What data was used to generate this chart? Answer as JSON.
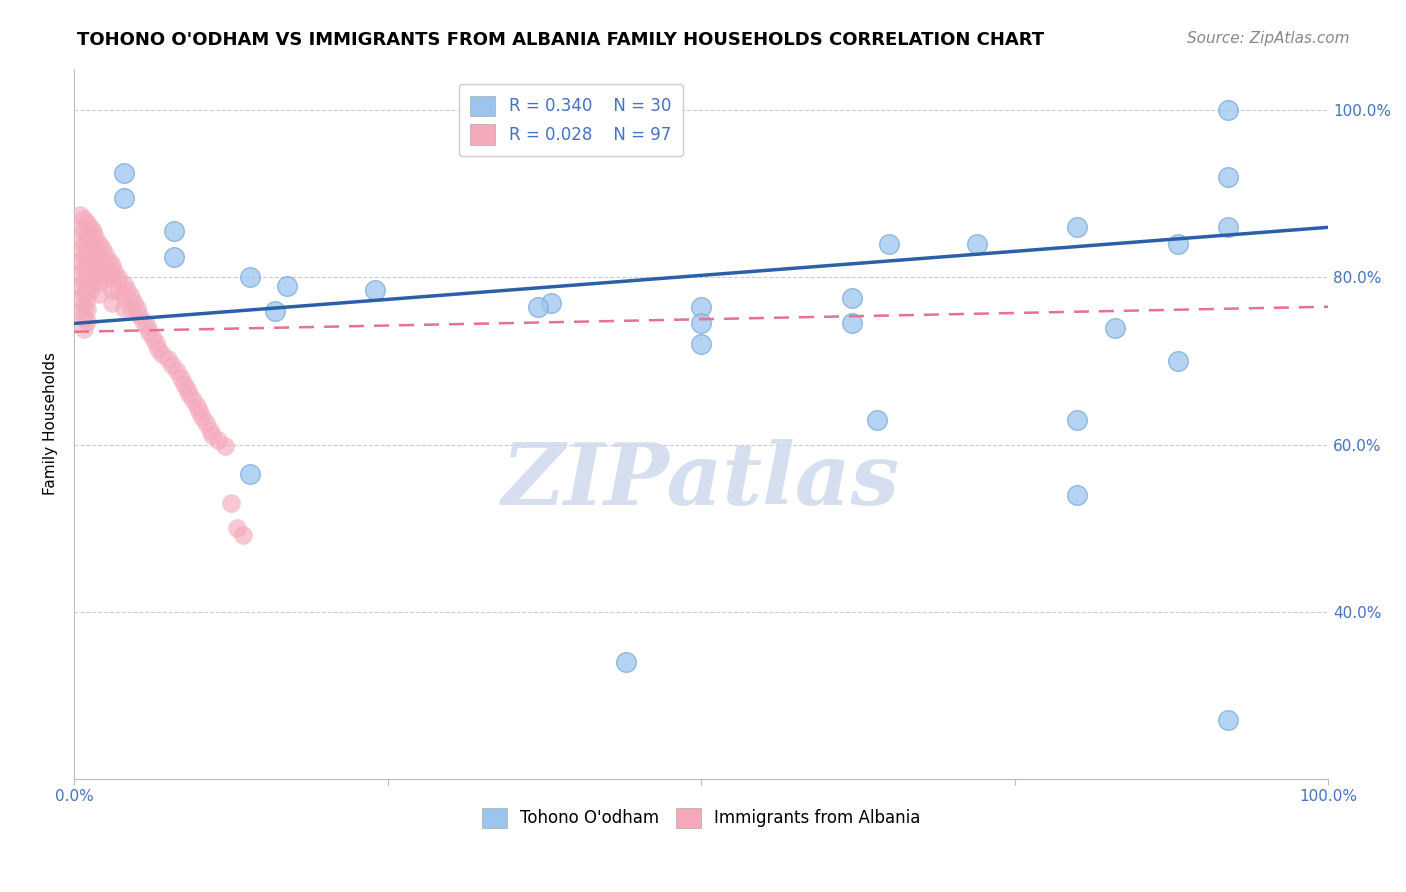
{
  "title": "TOHONO O'ODHAM VS IMMIGRANTS FROM ALBANIA FAMILY HOUSEHOLDS CORRELATION CHART",
  "source": "Source: ZipAtlas.com",
  "ylabel": "Family Households",
  "legend_blue_r": "R = 0.340",
  "legend_blue_n": "N = 30",
  "legend_pink_r": "R = 0.028",
  "legend_pink_n": "N = 97",
  "legend_blue_label": "Tohono O'odham",
  "legend_pink_label": "Immigrants from Albania",
  "blue_scatter_x": [
    0.04,
    0.04,
    0.08,
    0.08,
    0.14,
    0.17,
    0.24,
    0.38,
    0.5,
    0.62,
    0.62,
    0.65,
    0.72,
    0.8,
    0.83,
    0.88,
    0.92,
    0.92,
    0.92,
    0.16,
    0.14,
    0.37,
    0.5,
    0.5,
    0.64,
    0.8,
    0.8,
    0.88,
    0.44,
    0.92
  ],
  "blue_scatter_y": [
    0.925,
    0.895,
    0.855,
    0.825,
    0.8,
    0.79,
    0.785,
    0.77,
    0.765,
    0.775,
    0.745,
    0.84,
    0.84,
    0.86,
    0.74,
    0.84,
    1.0,
    0.92,
    0.86,
    0.76,
    0.565,
    0.765,
    0.745,
    0.72,
    0.63,
    0.63,
    0.54,
    0.7,
    0.34,
    0.27
  ],
  "pink_scatter_x": [
    0.005,
    0.005,
    0.005,
    0.005,
    0.005,
    0.005,
    0.005,
    0.005,
    0.008,
    0.008,
    0.008,
    0.008,
    0.008,
    0.008,
    0.008,
    0.008,
    0.008,
    0.008,
    0.01,
    0.01,
    0.01,
    0.01,
    0.01,
    0.01,
    0.01,
    0.01,
    0.01,
    0.013,
    0.013,
    0.013,
    0.013,
    0.013,
    0.013,
    0.015,
    0.015,
    0.015,
    0.015,
    0.015,
    0.017,
    0.017,
    0.017,
    0.017,
    0.02,
    0.02,
    0.02,
    0.02,
    0.02,
    0.022,
    0.022,
    0.022,
    0.025,
    0.025,
    0.025,
    0.028,
    0.028,
    0.03,
    0.03,
    0.03,
    0.03,
    0.032,
    0.035,
    0.035,
    0.04,
    0.04,
    0.04,
    0.042,
    0.045,
    0.045,
    0.048,
    0.05,
    0.052,
    0.055,
    0.058,
    0.06,
    0.063,
    0.065,
    0.067,
    0.07,
    0.075,
    0.078,
    0.082,
    0.085,
    0.088,
    0.09,
    0.092,
    0.095,
    0.098,
    0.1,
    0.102,
    0.105,
    0.108,
    0.11,
    0.115,
    0.12,
    0.125,
    0.13,
    0.135
  ],
  "pink_scatter_y": [
    0.875,
    0.855,
    0.835,
    0.82,
    0.805,
    0.79,
    0.775,
    0.76,
    0.87,
    0.855,
    0.84,
    0.825,
    0.81,
    0.795,
    0.78,
    0.765,
    0.752,
    0.738,
    0.865,
    0.85,
    0.835,
    0.82,
    0.805,
    0.79,
    0.775,
    0.762,
    0.748,
    0.86,
    0.845,
    0.83,
    0.815,
    0.8,
    0.785,
    0.855,
    0.84,
    0.825,
    0.81,
    0.795,
    0.848,
    0.833,
    0.818,
    0.803,
    0.84,
    0.825,
    0.81,
    0.795,
    0.78,
    0.835,
    0.82,
    0.805,
    0.828,
    0.813,
    0.798,
    0.82,
    0.805,
    0.815,
    0.8,
    0.785,
    0.77,
    0.808,
    0.8,
    0.785,
    0.792,
    0.778,
    0.764,
    0.785,
    0.778,
    0.763,
    0.77,
    0.763,
    0.755,
    0.748,
    0.742,
    0.735,
    0.728,
    0.722,
    0.715,
    0.708,
    0.702,
    0.695,
    0.688,
    0.68,
    0.673,
    0.667,
    0.66,
    0.653,
    0.646,
    0.64,
    0.633,
    0.626,
    0.618,
    0.612,
    0.605,
    0.598,
    0.53,
    0.5,
    0.492
  ],
  "blue_line_x": [
    0.0,
    1.0
  ],
  "blue_line_y": [
    0.745,
    0.86
  ],
  "pink_line_x": [
    0.0,
    1.0
  ],
  "pink_line_y": [
    0.735,
    0.765
  ],
  "xlim": [
    0.0,
    1.0
  ],
  "ylim": [
    0.2,
    1.05
  ],
  "ytick_positions": [
    0.4,
    0.6,
    0.8,
    1.0
  ],
  "ytick_labels": [
    "40.0%",
    "60.0%",
    "80.0%",
    "100.0%"
  ],
  "xtick_positions": [
    0.0,
    0.25,
    0.5,
    0.75,
    1.0
  ],
  "xtick_labels": [
    "0.0%",
    "",
    "",
    "",
    "100.0%"
  ],
  "background_color": "#ffffff",
  "grid_color": "#cccccc",
  "blue_color": "#9CC5EE",
  "pink_color": "#F4AABB",
  "blue_line_color": "#2B5FA8",
  "pink_line_color": "#E87090",
  "title_fontsize": 13,
  "source_fontsize": 11,
  "axis_label_fontsize": 11,
  "tick_fontsize": 11,
  "legend_fontsize": 12,
  "watermark_text": "ZIPatlas",
  "watermark_color": "#ccd8ec"
}
